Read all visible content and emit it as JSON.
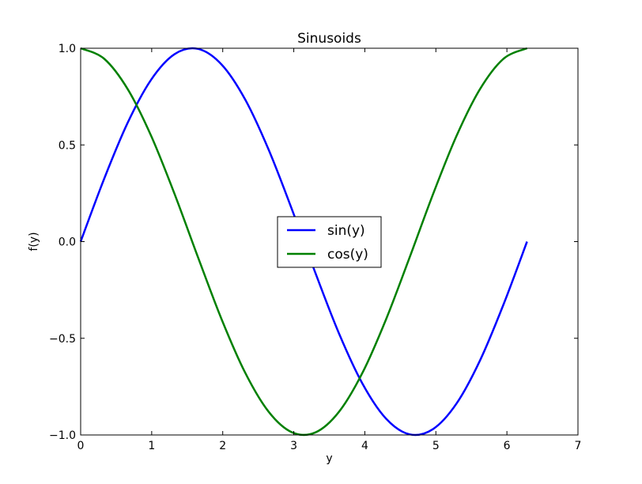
{
  "chart_data": {
    "type": "line",
    "title": "Sinusoids",
    "xlabel": "y",
    "ylabel": "f(y)",
    "xlim": [
      0,
      7
    ],
    "ylim": [
      -1.0,
      1.0
    ],
    "xticks": [
      0,
      1,
      2,
      3,
      4,
      5,
      6,
      7
    ],
    "xtick_labels": [
      "0",
      "1",
      "2",
      "3",
      "4",
      "5",
      "6",
      "7"
    ],
    "yticks": [
      -1.0,
      -0.5,
      0.0,
      0.5,
      1.0
    ],
    "ytick_labels": [
      "−1.0",
      "−0.5",
      "0.0",
      "0.5",
      "1.0"
    ],
    "grid": false,
    "legend_position": "center",
    "series": [
      {
        "name": "sin(y)",
        "color": "#0000ff",
        "x": [
          0,
          0.3307,
          0.6614,
          0.9921,
          1.3228,
          1.6535,
          1.9842,
          2.3149,
          2.6456,
          2.9762,
          3.3069,
          3.6376,
          3.9683,
          4.299,
          4.6297,
          4.9604,
          5.2911,
          5.6218,
          5.9525,
          6.2832
        ],
        "y": [
          0,
          0.3247,
          0.6142,
          0.8372,
          0.9694,
          0.9966,
          0.9158,
          0.7357,
          0.4759,
          0.1646,
          -0.1646,
          -0.4759,
          -0.7357,
          -0.9158,
          -0.9966,
          -0.9694,
          -0.8372,
          -0.6142,
          -0.3247,
          0
        ]
      },
      {
        "name": "cos(y)",
        "color": "#008000",
        "x": [
          0,
          0.3307,
          0.6614,
          0.9921,
          1.3228,
          1.6535,
          1.9842,
          2.3149,
          2.6456,
          2.9762,
          3.3069,
          3.6376,
          3.9683,
          4.299,
          4.6297,
          4.9604,
          5.2911,
          5.6218,
          5.9525,
          6.2832
        ],
        "y": [
          1,
          0.9458,
          0.7891,
          0.5469,
          0.2455,
          -0.0826,
          -0.4017,
          -0.6773,
          -0.8795,
          -0.9864,
          -0.9864,
          -0.8795,
          -0.6773,
          -0.4017,
          -0.0826,
          0.2455,
          0.5469,
          0.7891,
          0.9458,
          1
        ]
      }
    ]
  }
}
